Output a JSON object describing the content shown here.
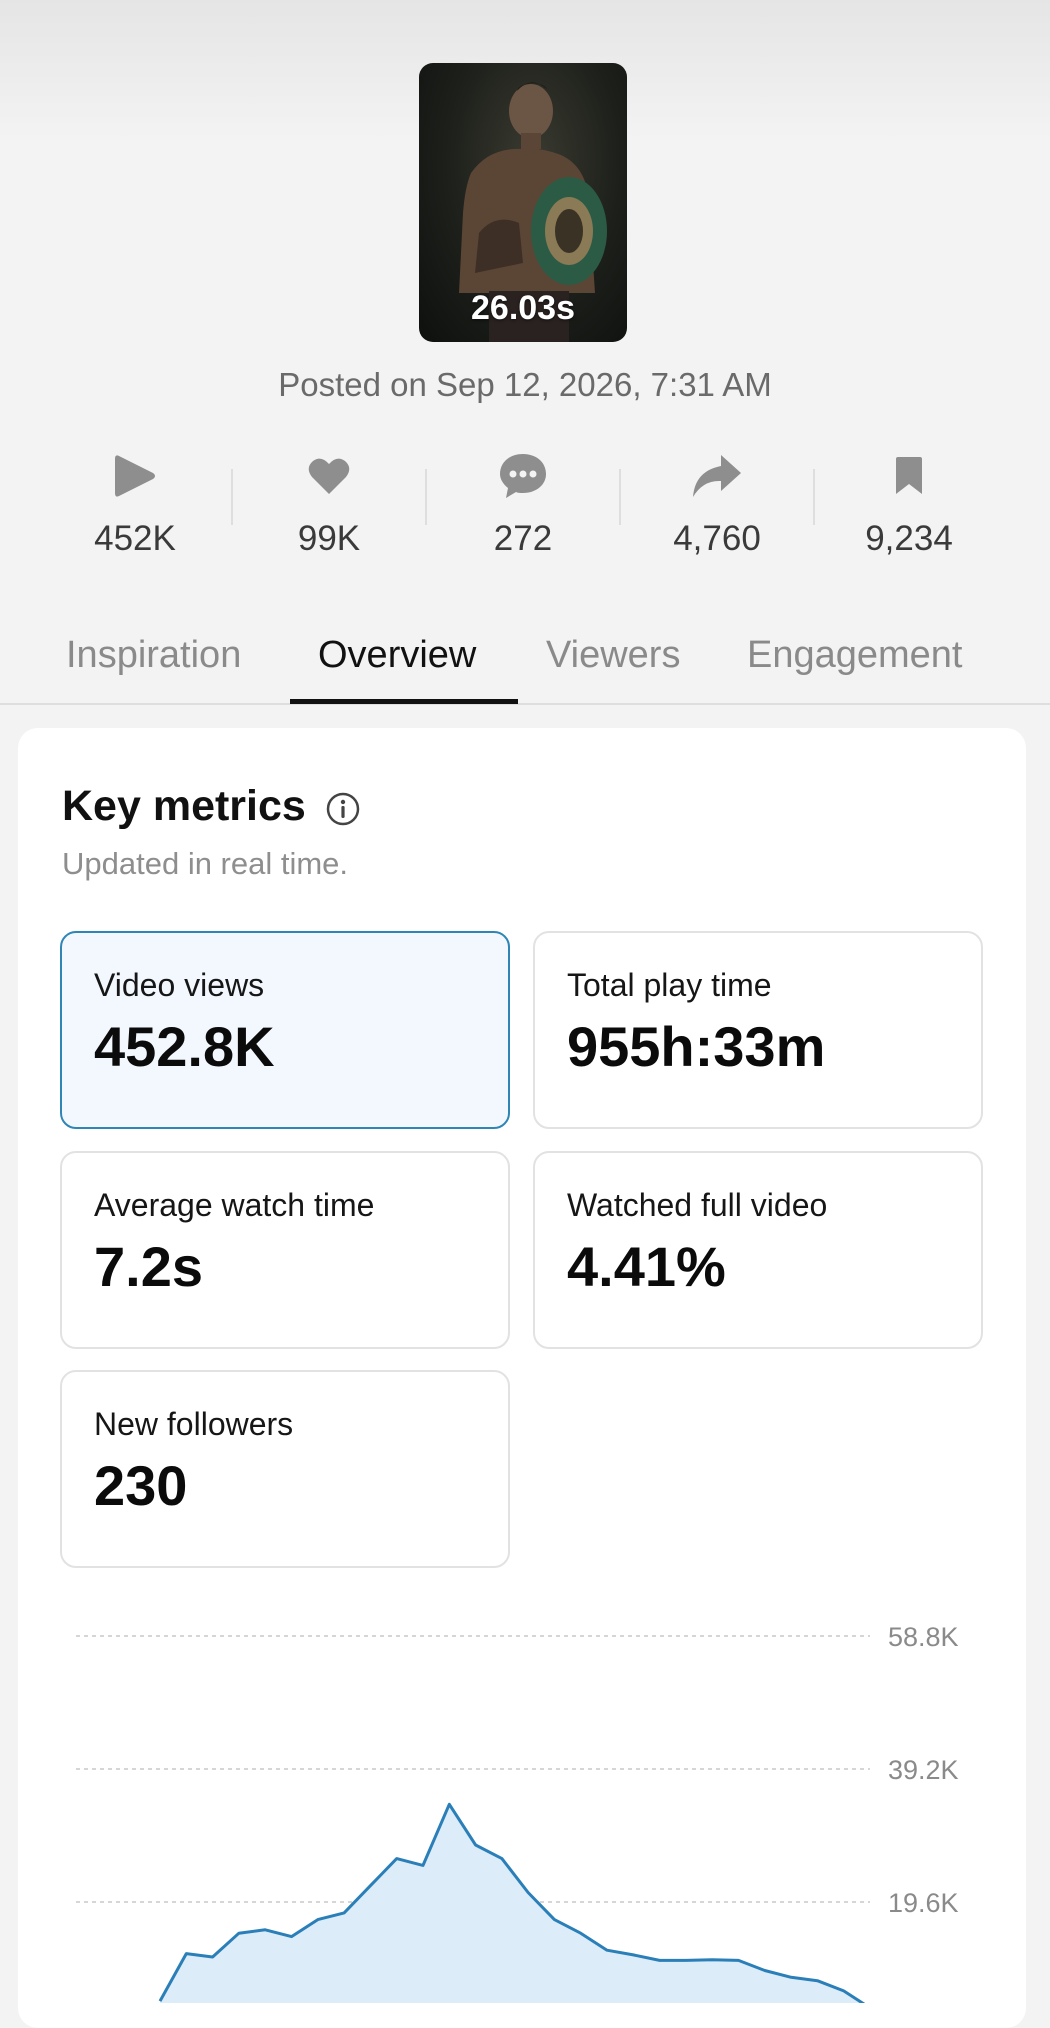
{
  "video": {
    "duration": "26.03s",
    "posted": "Posted on Sep 12, 2026, 7:31 AM"
  },
  "stats": [
    {
      "icon": "play-icon",
      "value": "452K"
    },
    {
      "icon": "heart-icon",
      "value": "99K"
    },
    {
      "icon": "comment-icon",
      "value": "272"
    },
    {
      "icon": "share-icon",
      "value": "4,760"
    },
    {
      "icon": "bookmark-icon",
      "value": "9,234"
    }
  ],
  "tabs": [
    {
      "label": "Inspiration",
      "active": false
    },
    {
      "label": "Overview",
      "active": true
    },
    {
      "label": "Viewers",
      "active": false
    },
    {
      "label": "Engagement",
      "active": false
    }
  ],
  "key_metrics": {
    "title": "Key metrics",
    "subtitle": "Updated in real time.",
    "cards": [
      {
        "label": "Video views",
        "value": "452.8K",
        "selected": true
      },
      {
        "label": "Total play time",
        "value": "955h:33m",
        "selected": false
      },
      {
        "label": "Average watch time",
        "value": "7.2s",
        "selected": false
      },
      {
        "label": "Watched full video",
        "value": "4.41%",
        "selected": false
      },
      {
        "label": "New followers",
        "value": "230",
        "selected": false
      }
    ]
  },
  "colors": {
    "accent": "#2f86b5",
    "chart_line": "#2a7fb8",
    "chart_fill": "#dcecf9"
  },
  "chart_data": {
    "type": "area",
    "y_ticks": [
      "58.8K",
      "39.2K",
      "19.6K"
    ],
    "ylim": [
      0,
      58800
    ],
    "grid": true,
    "x": [
      0,
      1,
      2,
      3,
      4,
      5,
      6,
      7,
      8,
      9,
      10,
      11,
      12,
      13,
      14,
      15,
      16,
      17,
      18,
      19,
      20,
      21,
      22,
      23,
      24,
      25,
      26,
      27
    ],
    "values": [
      5000,
      12000,
      11500,
      15000,
      15500,
      14500,
      17000,
      18000,
      22000,
      26000,
      25000,
      34000,
      28000,
      26000,
      21000,
      17000,
      15000,
      12500,
      11800,
      11000,
      11000,
      11100,
      11000,
      9500,
      8500,
      8000,
      6500,
      4000
    ]
  }
}
